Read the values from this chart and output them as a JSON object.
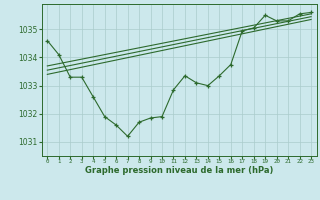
{
  "bg_color": "#cce8ec",
  "grid_color": "#aacccc",
  "line_color": "#2d6a2d",
  "xlabel": "Graphe pression niveau de la mer (hPa)",
  "xlim": [
    -0.5,
    23.5
  ],
  "ylim": [
    1030.5,
    1035.9
  ],
  "yticks": [
    1031,
    1032,
    1033,
    1034,
    1035
  ],
  "xticks": [
    0,
    1,
    2,
    3,
    4,
    5,
    6,
    7,
    8,
    9,
    10,
    11,
    12,
    13,
    14,
    15,
    16,
    17,
    18,
    19,
    20,
    21,
    22,
    23
  ],
  "main_x": [
    0,
    1,
    2,
    3,
    4,
    5,
    6,
    7,
    8,
    9,
    10,
    11,
    12,
    13,
    14,
    15,
    16,
    17,
    18,
    19,
    20,
    21,
    22,
    23
  ],
  "main_y": [
    1034.6,
    1034.1,
    1033.3,
    1033.3,
    1032.6,
    1031.9,
    1031.6,
    1031.2,
    1031.7,
    1031.85,
    1031.9,
    1032.85,
    1033.35,
    1033.1,
    1033.0,
    1033.35,
    1033.75,
    1034.95,
    1035.05,
    1035.5,
    1035.3,
    1035.3,
    1035.55,
    1035.6
  ],
  "line1_x": [
    0,
    23
  ],
  "line1_y": [
    1033.7,
    1035.55
  ],
  "line2_x": [
    0,
    23
  ],
  "line2_y": [
    1033.55,
    1035.45
  ],
  "line3_x": [
    0,
    23
  ],
  "line3_y": [
    1033.4,
    1035.35
  ]
}
